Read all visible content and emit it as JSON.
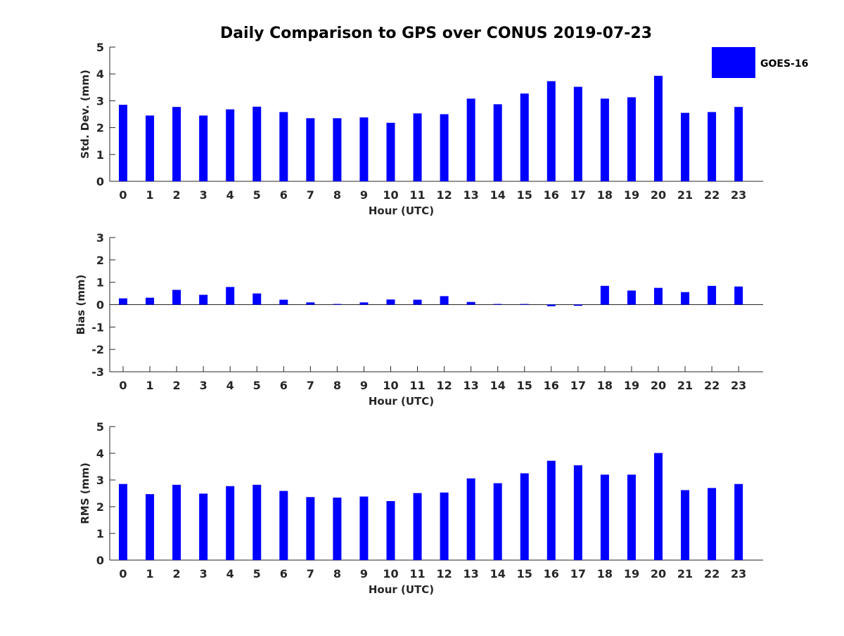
{
  "figure": {
    "title": "Daily Comparison to GPS over CONUS 2019-07-23"
  },
  "legend": {
    "label": "GOES-16",
    "color": "#0000ff"
  },
  "chart_data": [
    {
      "type": "bar",
      "title": "",
      "xlabel": "Hour (UTC)",
      "ylabel": "Std. Dev. (mm)",
      "ylim": [
        0,
        5
      ],
      "yticks": [
        0,
        1,
        2,
        3,
        4,
        5
      ],
      "categories": [
        "0",
        "1",
        "2",
        "3",
        "4",
        "5",
        "6",
        "7",
        "8",
        "9",
        "10",
        "11",
        "12",
        "13",
        "14",
        "15",
        "16",
        "17",
        "18",
        "19",
        "20",
        "21",
        "22",
        "23"
      ],
      "series": [
        {
          "name": "GOES-16",
          "color": "#0000ff",
          "values": [
            2.85,
            2.45,
            2.77,
            2.45,
            2.68,
            2.78,
            2.58,
            2.35,
            2.35,
            2.38,
            2.18,
            2.53,
            2.5,
            3.08,
            2.87,
            3.27,
            3.73,
            3.52,
            3.08,
            3.13,
            3.93,
            2.55,
            2.58,
            2.77
          ]
        }
      ]
    },
    {
      "type": "bar",
      "title": "",
      "xlabel": "Hour (UTC)",
      "ylabel": "Bias (mm)",
      "ylim": [
        -3,
        3
      ],
      "yticks": [
        -3,
        -2,
        -1,
        0,
        1,
        2,
        3
      ],
      "categories": [
        "0",
        "1",
        "2",
        "3",
        "4",
        "5",
        "6",
        "7",
        "8",
        "9",
        "10",
        "11",
        "12",
        "13",
        "14",
        "15",
        "16",
        "17",
        "18",
        "19",
        "20",
        "21",
        "22",
        "23"
      ],
      "series": [
        {
          "name": "GOES-16",
          "color": "#0000ff",
          "values": [
            0.28,
            0.31,
            0.66,
            0.44,
            0.79,
            0.5,
            0.22,
            0.1,
            0.03,
            0.1,
            0.23,
            0.22,
            0.38,
            0.12,
            0.03,
            0.03,
            -0.07,
            -0.05,
            0.84,
            0.63,
            0.75,
            0.56,
            0.84,
            0.81
          ]
        }
      ]
    },
    {
      "type": "bar",
      "title": "",
      "xlabel": "Hour (UTC)",
      "ylabel": "RMS (mm)",
      "ylim": [
        0,
        5
      ],
      "yticks": [
        0,
        1,
        2,
        3,
        4,
        5
      ],
      "categories": [
        "0",
        "1",
        "2",
        "3",
        "4",
        "5",
        "6",
        "7",
        "8",
        "9",
        "10",
        "11",
        "12",
        "13",
        "14",
        "15",
        "16",
        "17",
        "18",
        "19",
        "20",
        "21",
        "22",
        "23"
      ],
      "series": [
        {
          "name": "GOES-16",
          "color": "#0000ff",
          "values": [
            2.85,
            2.47,
            2.82,
            2.49,
            2.77,
            2.82,
            2.59,
            2.36,
            2.34,
            2.38,
            2.21,
            2.51,
            2.53,
            3.06,
            2.88,
            3.25,
            3.72,
            3.55,
            3.2,
            3.2,
            4.01,
            2.62,
            2.7,
            2.85
          ]
        }
      ]
    }
  ]
}
